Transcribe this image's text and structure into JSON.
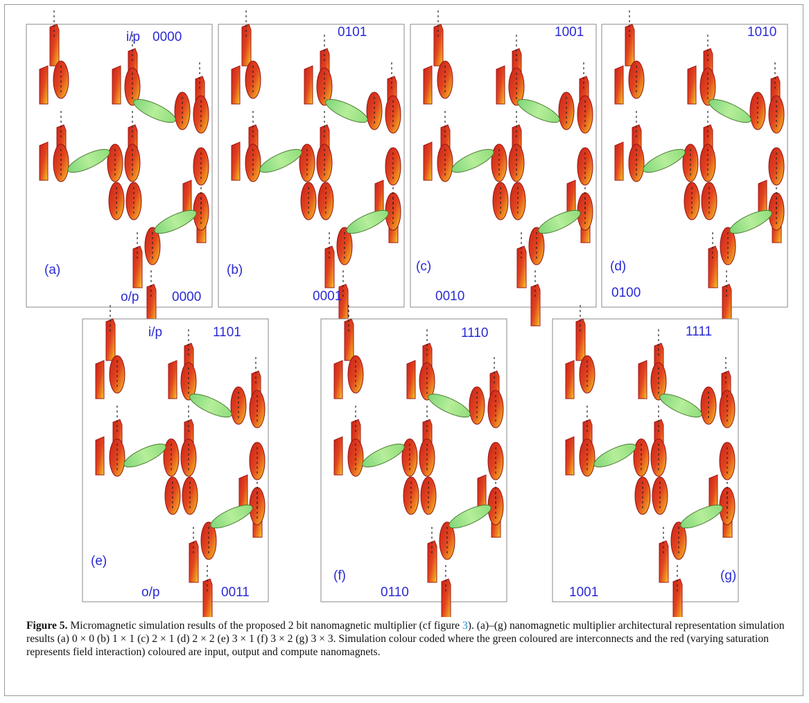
{
  "figure": {
    "panels": [
      {
        "label": "(a)",
        "input_tag": "i/p",
        "input": "0000",
        "output_tag": "o/p",
        "output": "0000"
      },
      {
        "label": "(b)",
        "input": "0101",
        "output": "0001"
      },
      {
        "label": "(c)",
        "input": "1001",
        "output": "0010"
      },
      {
        "label": "(d)",
        "input": "1010",
        "output": "0100"
      },
      {
        "label": "(e)",
        "input_tag": "i/p",
        "input": "1101",
        "output_tag": "o/p",
        "output": "0011"
      },
      {
        "label": "(f)",
        "input": "1110",
        "output": "0110"
      },
      {
        "label": "(g)",
        "input": "1111",
        "output": "1001"
      }
    ],
    "caption": {
      "label": "Figure 5.",
      "text_before": "Micromagnetic simulation results of the proposed 2 bit nanomagnetic multiplier (cf figure ",
      "link": "3",
      "text_after": "). (a)–(g) nanomagnetic multiplier architectural representation simulation results (a) 0 × 0 (b) 1 × 1 (c) 2 × 1 (d) 2 × 2 (e) 3 × 1 (f) 3 × 2 (g) 3 × 3. Simulation colour coded where the green coloured are interconnects and the red (varying saturation represents field interaction) coloured are input, output and compute nanomagnets."
    }
  }
}
